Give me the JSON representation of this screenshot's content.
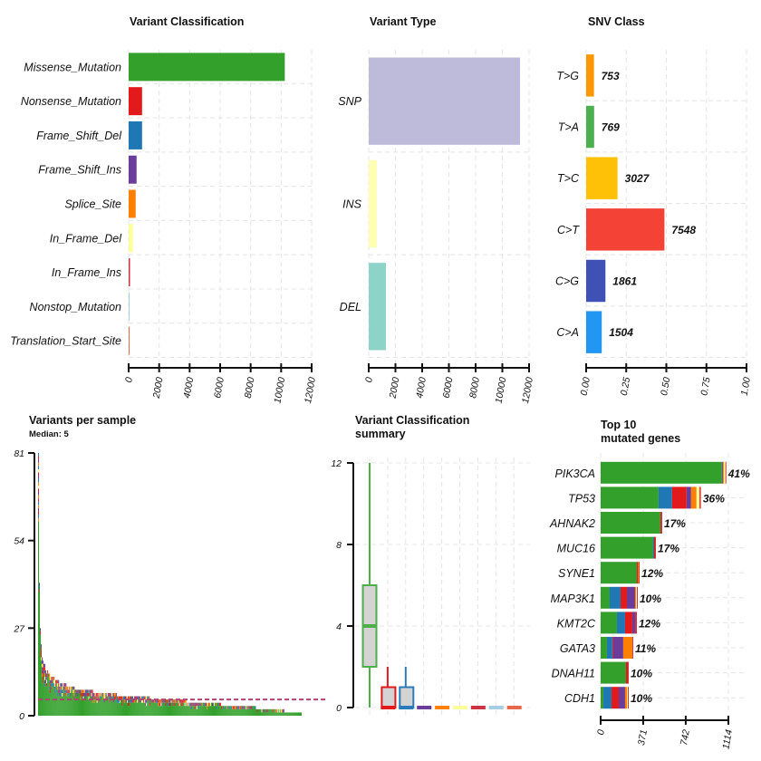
{
  "chart_data": [
    {
      "id": "variant_classification",
      "type": "bar",
      "orientation": "horizontal",
      "title": "Variant Classification",
      "categories": [
        "Missense_Mutation",
        "Nonsense_Mutation",
        "Frame_Shift_Del",
        "Frame_Shift_Ins",
        "Splice_Site",
        "In_Frame_Del",
        "In_Frame_Ins",
        "Nonstop_Mutation",
        "Translation_Start_Site"
      ],
      "values": [
        10240,
        880,
        880,
        520,
        460,
        280,
        90,
        25,
        20
      ],
      "colors": [
        "#33a02c",
        "#e31a1c",
        "#1f78b4",
        "#6a3d9a",
        "#ff7f00",
        "#ffff99",
        "#cc3344",
        "#a6cee3",
        "#e6694b"
      ],
      "xlim": [
        0,
        12000
      ],
      "xticks": [
        "0",
        "2000",
        "4000",
        "6000",
        "8000",
        "10000",
        "12000"
      ],
      "xtick_values": [
        0,
        2000,
        4000,
        6000,
        8000,
        10000,
        12000
      ],
      "grid": true
    },
    {
      "id": "variant_type",
      "type": "bar",
      "orientation": "horizontal",
      "title": "Variant Type",
      "categories": [
        "SNP",
        "INS",
        "DEL"
      ],
      "values": [
        11320,
        610,
        1290
      ],
      "colors": [
        "#bebada",
        "#ffffb3",
        "#8dd3c7"
      ],
      "xlim": [
        0,
        12000
      ],
      "xticks": [
        "0",
        "2000",
        "4000",
        "6000",
        "8000",
        "10000",
        "12000"
      ],
      "xtick_values": [
        0,
        2000,
        4000,
        6000,
        8000,
        10000,
        12000
      ],
      "grid": true
    },
    {
      "id": "snv_class",
      "type": "bar",
      "orientation": "horizontal",
      "title": "SNV Class",
      "categories": [
        "T>G",
        "T>A",
        "T>C",
        "C>T",
        "C>G",
        "C>A"
      ],
      "counts": [
        753,
        769,
        3027,
        7548,
        1861,
        1504
      ],
      "count_labels": [
        "753",
        "769",
        "3027",
        "7548",
        "1861",
        "1504"
      ],
      "colors": [
        "#ff9800",
        "#4caf50",
        "#ffc107",
        "#f44336",
        "#3f51b5",
        "#2196f3"
      ],
      "xlim": [
        0,
        1
      ],
      "xticks": [
        "0.00",
        "0.25",
        "0.50",
        "0.75",
        "1.00"
      ],
      "xtick_values": [
        0,
        0.25,
        0.5,
        0.75,
        1.0
      ],
      "grid": true
    },
    {
      "id": "variants_per_sample",
      "type": "bar",
      "stacked": true,
      "title": "Variants per sample",
      "subtitle": "Median: 5",
      "median": 5,
      "ylim": [
        0,
        81
      ],
      "yticks": [
        "0",
        "27",
        "54",
        "81"
      ],
      "ytick_values": [
        0,
        27,
        54,
        81
      ],
      "sorted_totals_profile": [
        {
          "value": 81,
          "samples": 1
        },
        {
          "value": 41,
          "samples": 1
        },
        {
          "value": 27,
          "samples": 1
        },
        {
          "value": 22,
          "samples": 1
        },
        {
          "value": 18,
          "samples": 2
        },
        {
          "value": 16,
          "samples": 2
        },
        {
          "value": 14,
          "samples": 3
        },
        {
          "value": 13,
          "samples": 3
        },
        {
          "value": 12,
          "samples": 4
        },
        {
          "value": 11,
          "samples": 5
        },
        {
          "value": 10,
          "samples": 8
        },
        {
          "value": 9,
          "samples": 10
        },
        {
          "value": 8,
          "samples": 19
        },
        {
          "value": 7,
          "samples": 26
        },
        {
          "value": 6,
          "samples": 36
        },
        {
          "value": 5,
          "samples": 40
        },
        {
          "value": 4,
          "samples": 38
        },
        {
          "value": 3,
          "samples": 38
        },
        {
          "value": 2,
          "samples": 31
        },
        {
          "value": 1,
          "samples": 19
        }
      ],
      "class_colors": [
        "#33a02c",
        "#1f78b4",
        "#e31a1c",
        "#6a3d9a",
        "#ff7f00",
        "#ffff99",
        "#cc3344"
      ],
      "median_line_color": "#b3406f"
    },
    {
      "id": "variant_classification_summary",
      "type": "boxplot",
      "title": "Variant Classification\nsummary",
      "title_lines": [
        "Variant Classification",
        "summary"
      ],
      "ylim": [
        0,
        12
      ],
      "yticks": [
        "0",
        "4",
        "8",
        "12"
      ],
      "ytick_values": [
        0,
        4,
        8,
        12
      ],
      "boxes": [
        {
          "name": "Missense_Mutation",
          "min": 0,
          "q1": 2,
          "median": 4,
          "q3": 6,
          "max": 12,
          "color": "#4daf4a"
        },
        {
          "name": "Nonsense_Mutation",
          "min": 0,
          "q1": 0,
          "median": 0,
          "q3": 1,
          "max": 2,
          "color": "#e31a1c"
        },
        {
          "name": "Frame_Shift_Del",
          "min": 0,
          "q1": 0,
          "median": 0,
          "q3": 1,
          "max": 2,
          "color": "#2b7bba"
        },
        {
          "name": "Frame_Shift_Ins",
          "min": 0,
          "q1": 0,
          "median": 0,
          "q3": 0,
          "max": 0,
          "color": "#6a3d9a"
        },
        {
          "name": "Splice_Site",
          "min": 0,
          "q1": 0,
          "median": 0,
          "q3": 0,
          "max": 0,
          "color": "#ff7f00"
        },
        {
          "name": "In_Frame_Del",
          "min": 0,
          "q1": 0,
          "median": 0,
          "q3": 0,
          "max": 0,
          "color": "#ffff99"
        },
        {
          "name": "In_Frame_Ins",
          "min": 0,
          "q1": 0,
          "median": 0,
          "q3": 0,
          "max": 0,
          "color": "#cc3344"
        },
        {
          "name": "Nonstop_Mutation",
          "min": 0,
          "q1": 0,
          "median": 0,
          "q3": 0,
          "max": 0,
          "color": "#a6cee3"
        },
        {
          "name": "Translation_Start_Site",
          "min": 0,
          "q1": 0,
          "median": 0,
          "q3": 0,
          "max": 0,
          "color": "#e6694b"
        }
      ],
      "grid": true
    },
    {
      "id": "top10_genes",
      "type": "bar",
      "orientation": "horizontal",
      "stacked": true,
      "title": "Top 10\nmutated genes",
      "title_lines": [
        "Top 10",
        "mutated genes"
      ],
      "xlim": [
        0,
        1114
      ],
      "xticks": [
        "0",
        "371",
        "742",
        "1114"
      ],
      "xtick_values": [
        0,
        371,
        742,
        1114
      ],
      "segment_classes": [
        "Missense_Mutation",
        "Frame_Shift_Del",
        "Nonsense_Mutation",
        "Frame_Shift_Ins",
        "Splice_Site",
        "In_Frame_Del",
        "In_Frame_Ins",
        "Translation_Start_Site"
      ],
      "segment_colors": [
        "#33a02c",
        "#1f78b4",
        "#e31a1c",
        "#6a3d9a",
        "#ff7f00",
        "#ffff99",
        "#cc3344",
        "#e6694b"
      ],
      "genes": [
        {
          "name": "PIK3CA",
          "label": "41%",
          "segments": [
            1058,
            0,
            0,
            8,
            8,
            14,
            8,
            0
          ]
        },
        {
          "name": "TP53",
          "label": "36%",
          "segments": [
            505,
            118,
            126,
            40,
            47,
            24,
            8,
            8
          ]
        },
        {
          "name": "AHNAK2",
          "label": "17%",
          "segments": [
            521,
            0,
            8,
            0,
            0,
            0,
            8,
            0
          ]
        },
        {
          "name": "MUC16",
          "label": "17%",
          "segments": [
            458,
            8,
            8,
            0,
            0,
            0,
            8,
            0
          ]
        },
        {
          "name": "SYNE1",
          "label": "12%",
          "segments": [
            316,
            0,
            8,
            0,
            8,
            0,
            8,
            0
          ]
        },
        {
          "name": "MAP3K1",
          "label": "10%",
          "segments": [
            79,
            95,
            55,
            71,
            8,
            8,
            8,
            0
          ]
        },
        {
          "name": "KMT2C",
          "label": "12%",
          "segments": [
            142,
            71,
            63,
            24,
            0,
            0,
            16,
            0
          ]
        },
        {
          "name": "GATA3",
          "label": "11%",
          "segments": [
            55,
            47,
            8,
            87,
            79,
            0,
            8,
            0
          ]
        },
        {
          "name": "DNAH11",
          "label": "10%",
          "segments": [
            221,
            0,
            16,
            0,
            0,
            0,
            8,
            0
          ]
        },
        {
          "name": "CDH1",
          "label": "10%",
          "segments": [
            24,
            71,
            63,
            55,
            16,
            8,
            8,
            0
          ]
        }
      ],
      "grid": true
    }
  ]
}
